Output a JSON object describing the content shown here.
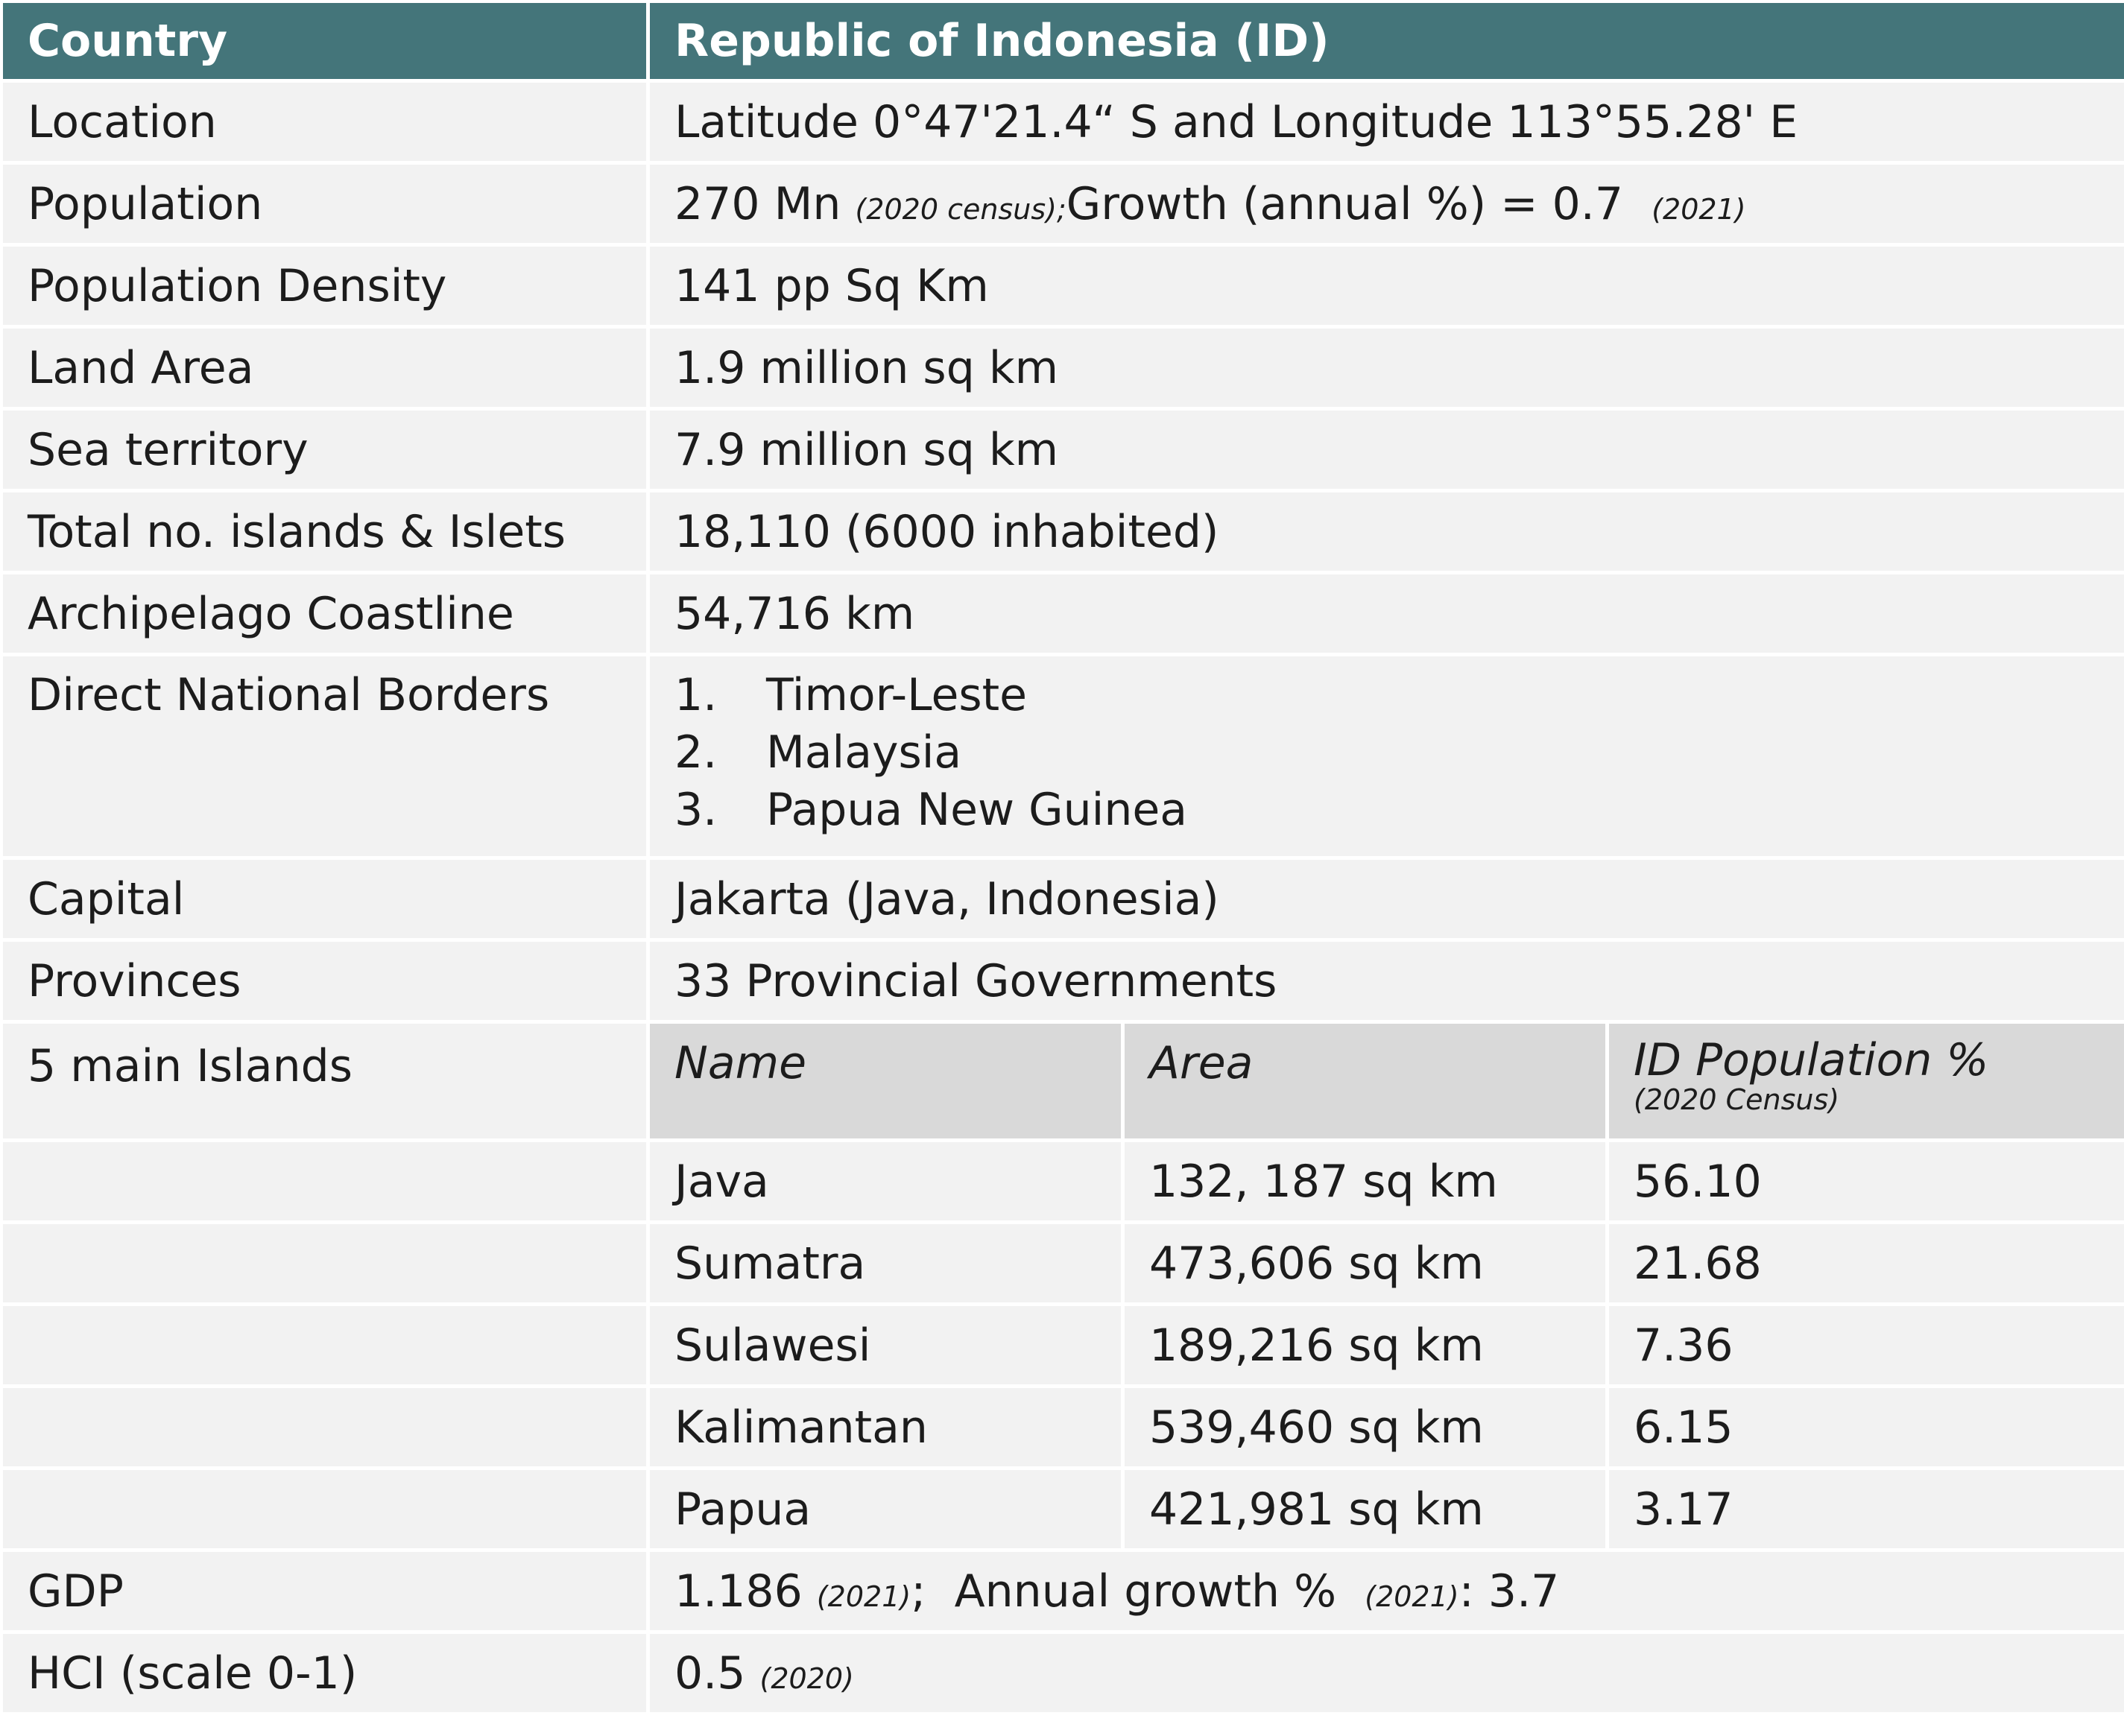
{
  "header": {
    "label": "Country",
    "value": "Republic of Indonesia (ID)"
  },
  "rows": {
    "location": {
      "label": "Location",
      "value": "Latitude 0°47'21.4“ S and Longitude 113°55.28' E"
    },
    "population": {
      "label": "Population",
      "value": "270 Mn",
      "value_note": "(2020 census);",
      "growth": "Growth (annual %) = 0.7",
      "growth_note": "(2021)"
    },
    "density": {
      "label": "Population Density",
      "value": "141 pp Sq Km"
    },
    "land": {
      "label": "Land Area",
      "value": "1.9 million sq km"
    },
    "sea": {
      "label": "Sea territory",
      "value": "7.9 million sq km"
    },
    "islands": {
      "label": "Total no. islands & Islets",
      "value": "18,110 (6000 inhabited)"
    },
    "coastline": {
      "label": "Archipelago Coastline",
      "value": "54,716 km"
    },
    "borders": {
      "label": "Direct National Borders",
      "items": [
        {
          "num": "1.",
          "name": "Timor-Leste"
        },
        {
          "num": "2.",
          "name": "Malaysia"
        },
        {
          "num": "3.",
          "name": "Papua New Guinea"
        }
      ]
    },
    "capital": {
      "label": "Capital",
      "value": "Jakarta (Java, Indonesia)"
    },
    "provinces": {
      "label": "Provinces",
      "value": "33 Provincial Governments"
    },
    "main_islands": {
      "label": "5 main Islands",
      "columns": [
        "Name",
        "Area",
        "ID Population %"
      ],
      "columns_note": "(2020 Census)",
      "items": [
        {
          "name": "Java",
          "area": "132, 187 sq km",
          "pct": "56.10"
        },
        {
          "name": "Sumatra",
          "area": "473,606 sq km",
          "pct": "21.68"
        },
        {
          "name": "Sulawesi",
          "area": "189,216 sq km",
          "pct": "7.36"
        },
        {
          "name": "Kalimantan",
          "area": "539,460 sq km",
          "pct": "6.15"
        },
        {
          "name": "Papua",
          "area": "421,981 sq km",
          "pct": "3.17"
        }
      ]
    },
    "gdp": {
      "label": "GDP",
      "value": "1.186",
      "value_note": "(2021)",
      "sep": ";",
      "growth": "Annual growth %",
      "growth_note": "(2021)",
      "growth_value": ": 3.7"
    },
    "hci": {
      "label": "HCI (scale 0-1)",
      "value": "0.5",
      "value_note": "(2020)"
    }
  },
  "colors": {
    "header_bg": "#44757a",
    "header_text": "#ffffff",
    "cell_bg": "#f2f2f2",
    "subheader_bg": "#d9d9d9"
  }
}
